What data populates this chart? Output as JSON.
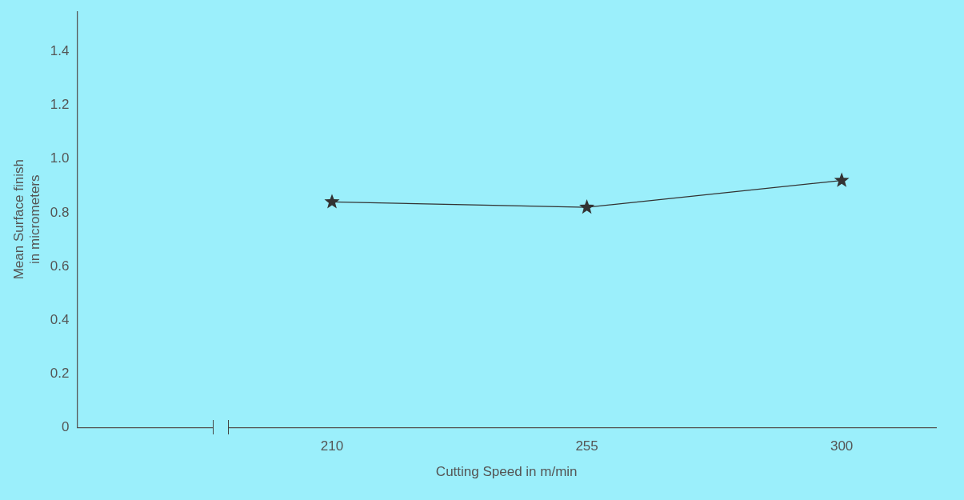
{
  "chart_data": {
    "type": "line",
    "xlabel": "Cutting Speed in m/min",
    "ylabel": "Mean Surface finish\nin micrometers",
    "categories": [
      "210",
      "255",
      "300"
    ],
    "series": [
      {
        "color": "#333333",
        "values": [
          0.84,
          0.82,
          0.92
        ]
      }
    ],
    "ylim": [
      0,
      1.55
    ],
    "yticks": [
      0,
      0.2,
      0.4,
      0.6,
      0.8,
      {
        "value": 1,
        "label": "1.0"
      },
      1.2,
      1.4
    ],
    "grid": false,
    "legend": false,
    "marker": "star",
    "line_style": "solid"
  }
}
